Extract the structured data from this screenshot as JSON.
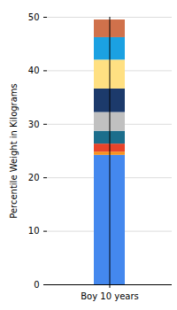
{
  "chart_data": {
    "type": "bar",
    "stacked": true,
    "grid": true,
    "categories": [
      "Boy 10 years"
    ],
    "ylabel": "Percentile Weight in Kilograms",
    "ylim": [
      0,
      50
    ],
    "yticks": [
      0,
      10,
      20,
      30,
      40,
      50
    ],
    "series": [
      {
        "color": "#4488ee",
        "values": [
          24.2
        ]
      },
      {
        "color": "#f7931e",
        "values": [
          0.6
        ]
      },
      {
        "color": "#e8442a",
        "values": [
          1.5
        ]
      },
      {
        "color": "#1c6e8c",
        "values": [
          2.4
        ]
      },
      {
        "color": "#c0c0c0",
        "values": [
          3.5
        ]
      },
      {
        "color": "#1c3a6b",
        "values": [
          4.4
        ]
      },
      {
        "color": "#ffe082",
        "values": [
          5.4
        ]
      },
      {
        "color": "#1ba1e2",
        "values": [
          4.2
        ]
      },
      {
        "color": "#d0714b",
        "values": [
          3.3
        ]
      }
    ]
  }
}
